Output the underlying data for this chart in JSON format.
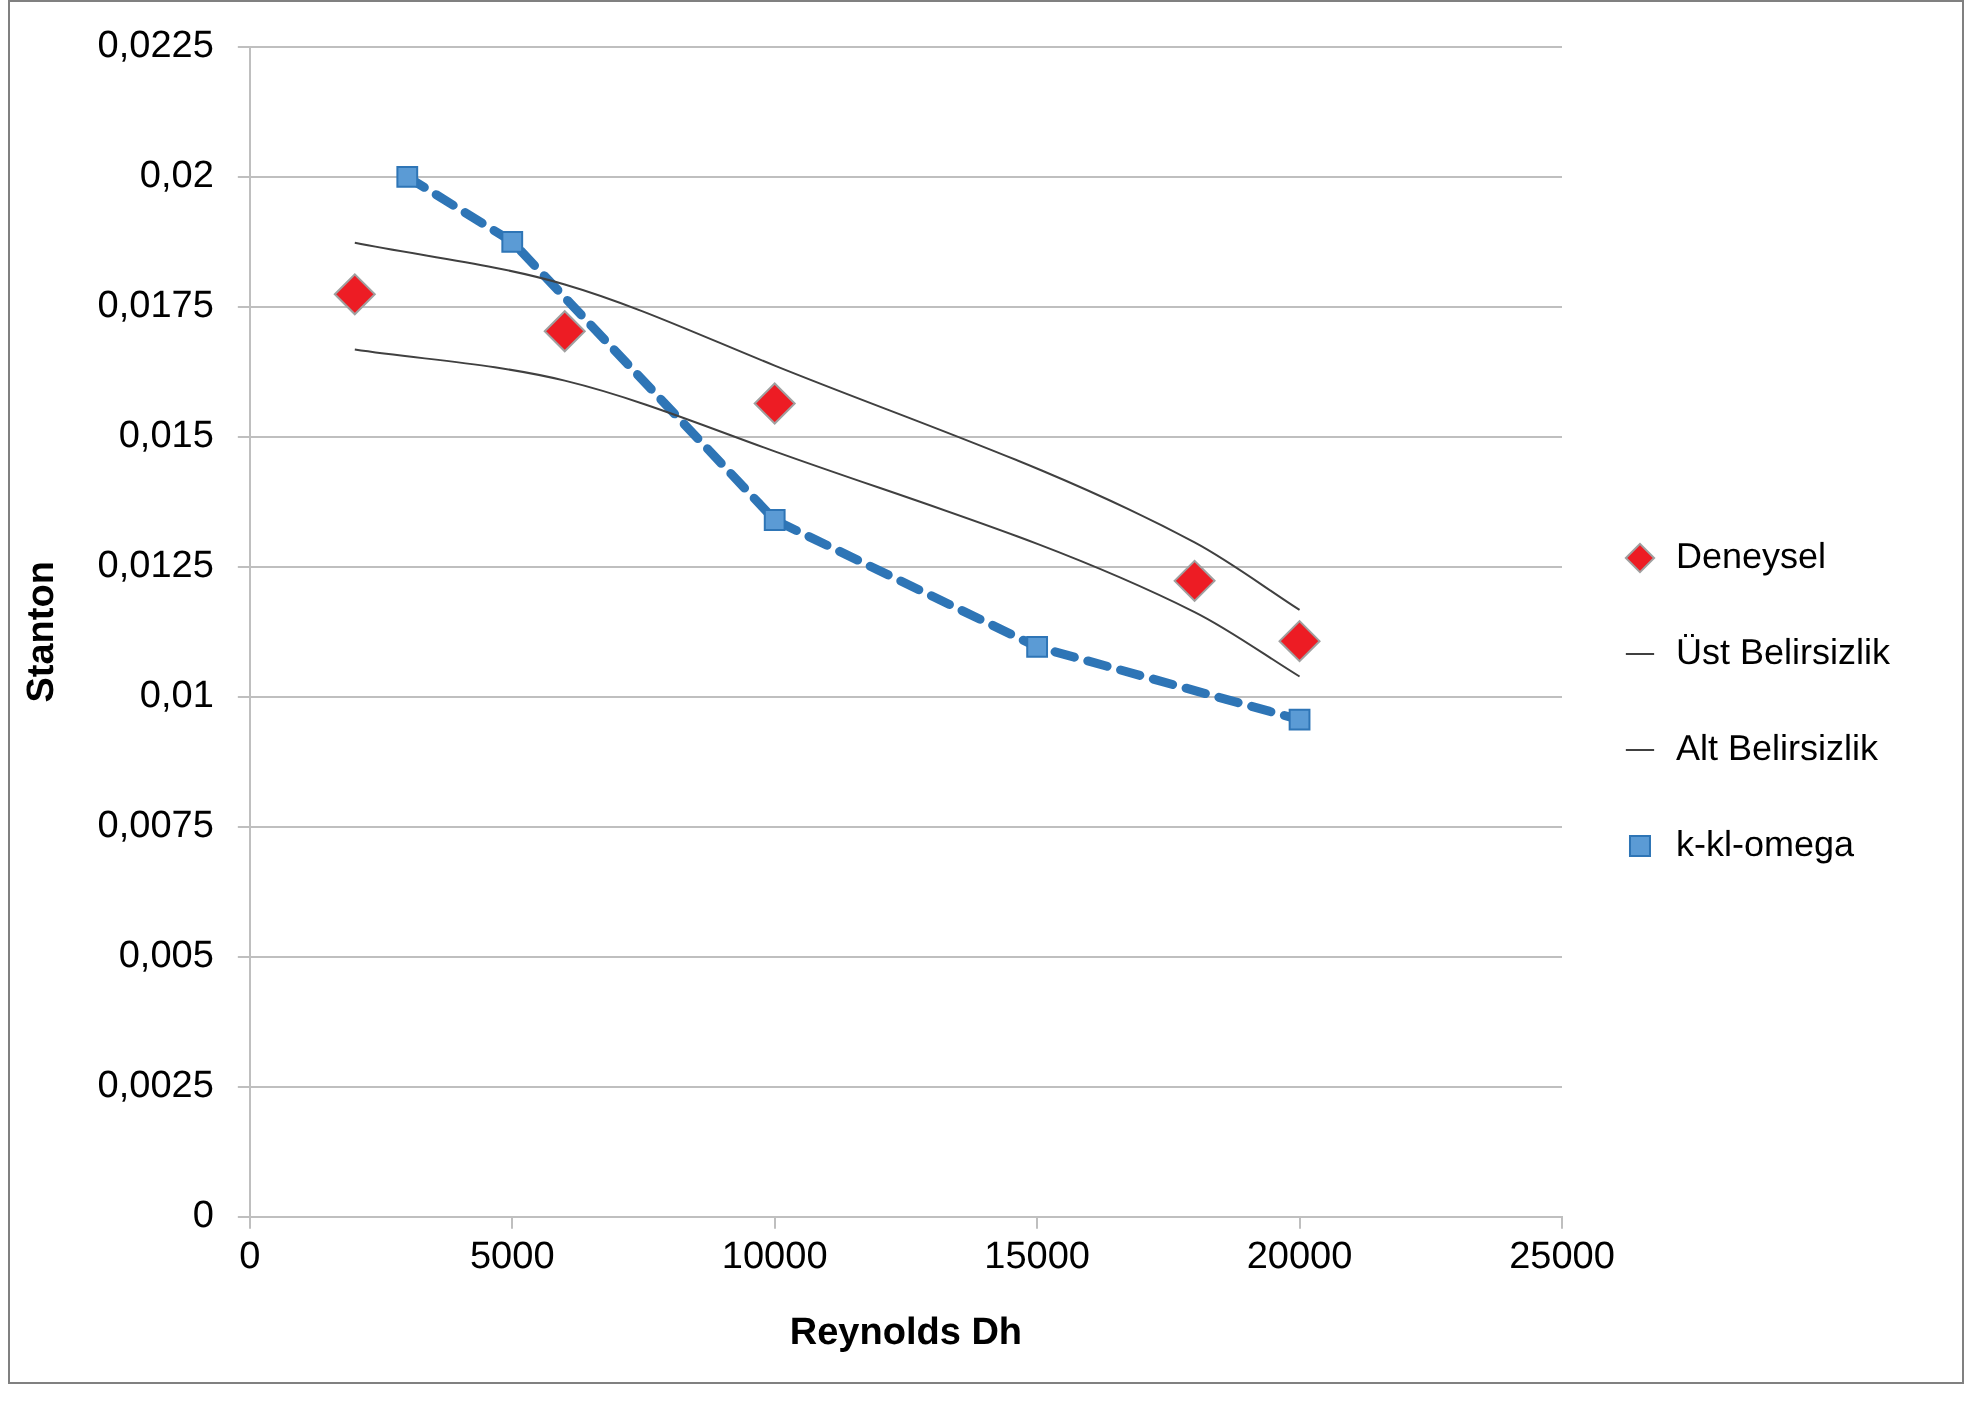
{
  "chart_data": {
    "type": "line",
    "xlabel": "Reynolds Dh",
    "ylabel": "Stanton",
    "xlim": [
      0,
      25000
    ],
    "xticks": [
      0,
      5000,
      10000,
      15000,
      20000,
      25000
    ],
    "ylim": [
      0,
      0.0225
    ],
    "yticks": [
      0,
      {
        "value": 0.0025,
        "label": "0,0025"
      },
      {
        "value": 0.005,
        "label": "0,005"
      },
      {
        "value": 0.0075,
        "label": "0,0075"
      },
      {
        "value": 0.01,
        "label": "0,01"
      },
      {
        "value": 0.0125,
        "label": "0,0125"
      },
      {
        "value": 0.015,
        "label": "0,015"
      },
      {
        "value": 0.0175,
        "label": "0,0175"
      },
      {
        "value": 0.02,
        "label": "0,02"
      },
      {
        "value": 0.0225,
        "label": "0,0225"
      }
    ],
    "grid": "y",
    "legend": "right",
    "series": [
      {
        "name": "Deneysel",
        "type": "scatter",
        "color": "#ed1c24",
        "marker": "diamond",
        "x": [
          2000,
          6000,
          10000,
          18000,
          20000
        ],
        "values": [
          0.01774,
          0.01703,
          0.01564,
          0.01223,
          0.01107
        ]
      },
      {
        "name": "Üst Belirsizlik",
        "color": "#404040",
        "marker": "none",
        "line_style": "solid",
        "x": [
          2000,
          6000,
          10000,
          18000,
          20000
        ],
        "values": [
          0.01873,
          0.01793,
          0.01637,
          0.01297,
          0.01167
        ]
      },
      {
        "name": "Alt Belirsizlik",
        "color": "#404040",
        "marker": "none",
        "line_style": "solid",
        "x": [
          2000,
          6000,
          10000,
          18000,
          20000
        ],
        "values": [
          0.01668,
          0.01608,
          0.01472,
          0.01163,
          0.01039
        ]
      },
      {
        "name": "k-kl-omega",
        "color": "#2e75b6",
        "marker": "square",
        "line_style": "dashed",
        "x": [
          3000,
          5000,
          10000,
          15000,
          20000
        ],
        "values": [
          0.02,
          0.01875,
          0.0134,
          0.01096,
          0.00956
        ]
      }
    ]
  }
}
